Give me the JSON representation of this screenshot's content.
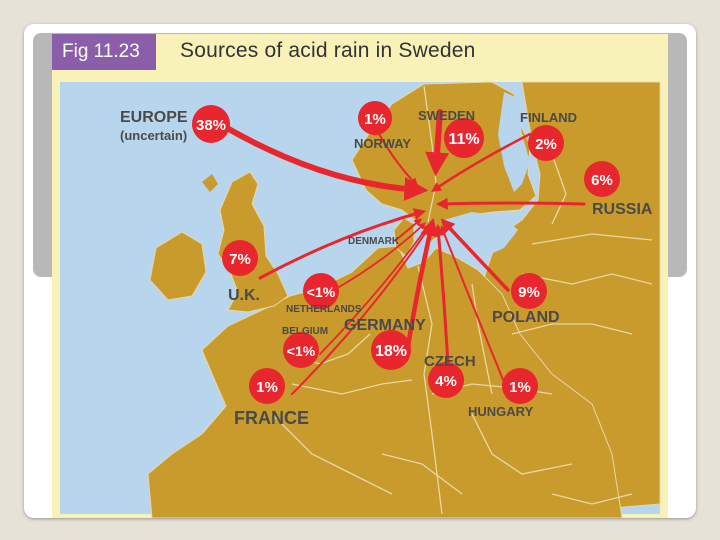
{
  "figure": {
    "label": "Fig 11.23",
    "title": "Sources of acid rain in Sweden"
  },
  "sources": [
    {
      "id": "europe",
      "name": "EUROPE",
      "note": "(uncertain)",
      "percent": "38%"
    },
    {
      "id": "norway",
      "name": "NORWAY",
      "percent": "1%"
    },
    {
      "id": "sweden",
      "name": "SWEDEN",
      "percent": "11%"
    },
    {
      "id": "finland",
      "name": "FINLAND",
      "percent": "2%"
    },
    {
      "id": "russia",
      "name": "RUSSIA",
      "percent": "6%"
    },
    {
      "id": "uk",
      "name": "U.K.",
      "percent": "7%"
    },
    {
      "id": "denmark",
      "name": "DENMARK",
      "percent": ""
    },
    {
      "id": "netherlands",
      "name": "NETHERLANDS",
      "percent": "<1%"
    },
    {
      "id": "belgium",
      "name": "BELGIUM",
      "percent": "<1%"
    },
    {
      "id": "germany",
      "name": "GERMANY",
      "percent": "18%"
    },
    {
      "id": "poland",
      "name": "POLAND",
      "percent": "9%"
    },
    {
      "id": "france",
      "name": "FRANCE",
      "percent": "1%"
    },
    {
      "id": "czech",
      "name": "CZECH",
      "percent": "4%"
    },
    {
      "id": "hungary",
      "name": "HUNGARY",
      "percent": "1%"
    }
  ],
  "colors": {
    "sea": "#b7d6ee",
    "land": "#c99a2c",
    "border": "#e9d7a6",
    "arrow": "#e8262d",
    "badge": "#e8262d",
    "header_badge": "#8a5ea8",
    "panel": "#f8f1b8"
  }
}
